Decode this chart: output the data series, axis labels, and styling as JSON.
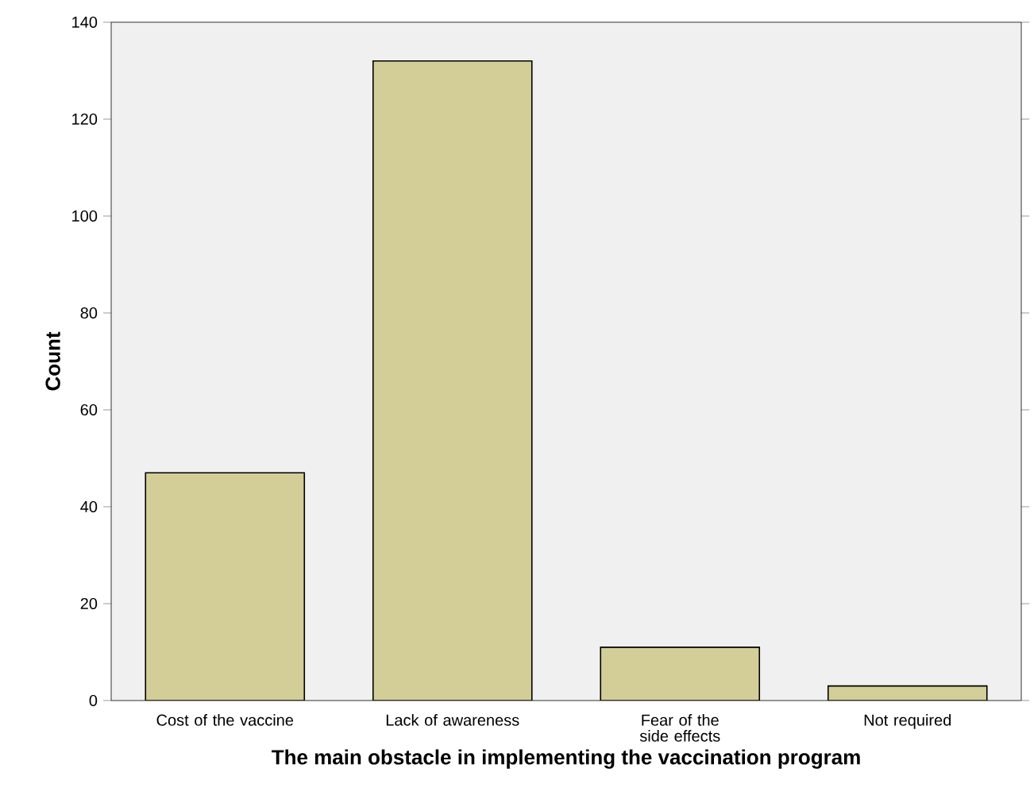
{
  "chart_data": {
    "type": "bar",
    "xlabel": "The main obstacle in implementing the vaccination program",
    "ylabel": "Count",
    "categories": [
      "Cost of the vaccine",
      "Lack of awareness",
      "Fear of the side effects",
      "Not required"
    ],
    "values": [
      47,
      132,
      11,
      3
    ],
    "color": "#d3ce97",
    "ylim": [
      0,
      140
    ],
    "yticks": [
      0,
      20,
      40,
      60,
      80,
      100,
      120,
      140
    ]
  }
}
